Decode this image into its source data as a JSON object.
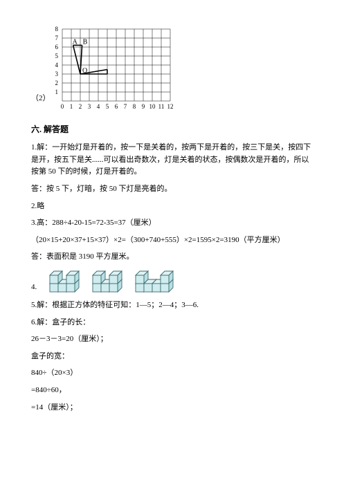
{
  "chart": {
    "marker": "（2）",
    "width": 175,
    "height": 130,
    "gridColor": "#000000",
    "gridWeight": 0.5,
    "cols": 12,
    "rows": 8,
    "cell": 13,
    "originX": 0,
    "originY": 0,
    "xTicks": [
      "0",
      "1",
      "2",
      "3",
      "4",
      "5",
      "6",
      "7",
      "8",
      "9",
      "10",
      "11",
      "12"
    ],
    "yTicks": [
      "1",
      "2",
      "3",
      "4",
      "5",
      "6",
      "7",
      "8"
    ],
    "labelA": "A",
    "labelB": "B",
    "O": "O",
    "shapeStroke": "#000000",
    "shapeWeight": 1.6,
    "pts": {
      "O": [
        2,
        3
      ],
      "A": [
        1.2,
        6.2
      ],
      "B": [
        2.2,
        6.2
      ],
      "R": [
        5,
        3.5
      ],
      "R2": [
        5,
        3
      ]
    }
  },
  "sectionTitle": "六. 解答题",
  "p1": "1.解：一开始灯是开着的，按一下是关着的，按两下是开着的，按三下是关，按四下是开，按五下是关......可以看出奇数次，灯是关着的状态，按偶数次是开着的，所以按第 50 下的时候，灯是开着的。",
  "p2": "答：按 5 下，灯暗，按 50 下灯是亮着的。",
  "p3": "2.略",
  "p4": "3.高：288÷4-20-15=72-35=37（厘米）",
  "p5": "（20×15+20×37+15×37）×2=（300+740+555）×2=1595×2=3190（平方厘米）",
  "p6": "答：表面积是 3190 平方厘米。",
  "cubesIdx": "4.",
  "cubes": {
    "top": "#e0f2f4",
    "side": "#b9dfe3",
    "front": "#d0ecef",
    "stroke": "#3a6b70",
    "sw": 0.9,
    "size": 12,
    "depth": 6
  },
  "shapes": [
    {
      "cells": [
        [
          0,
          0,
          1
        ],
        [
          0,
          0,
          0
        ],
        [
          1,
          0,
          0
        ],
        [
          2,
          0,
          0
        ],
        [
          2,
          0,
          1
        ]
      ]
    },
    {
      "cells": [
        [
          0,
          0,
          0
        ],
        [
          0,
          0,
          1
        ],
        [
          1,
          0,
          0
        ],
        [
          2,
          0,
          0
        ],
        [
          2,
          0,
          1
        ]
      ]
    },
    {
      "cells": [
        [
          0,
          0,
          0
        ],
        [
          0,
          0,
          1
        ],
        [
          1,
          0,
          0
        ],
        [
          2,
          0,
          0
        ],
        [
          3,
          0,
          0
        ],
        [
          3,
          0,
          1
        ]
      ]
    }
  ],
  "p7": "5.解：根据正方体的特征可知：1—5；2—4；3—6.",
  "p8": "6.解：盒子的长：",
  "p9": "26－3－3=20（厘米）；",
  "p10": "盒子的宽：",
  "p11": "840÷（20×3）",
  "p12": "=840÷60，",
  "p13": "=14（厘米）；"
}
